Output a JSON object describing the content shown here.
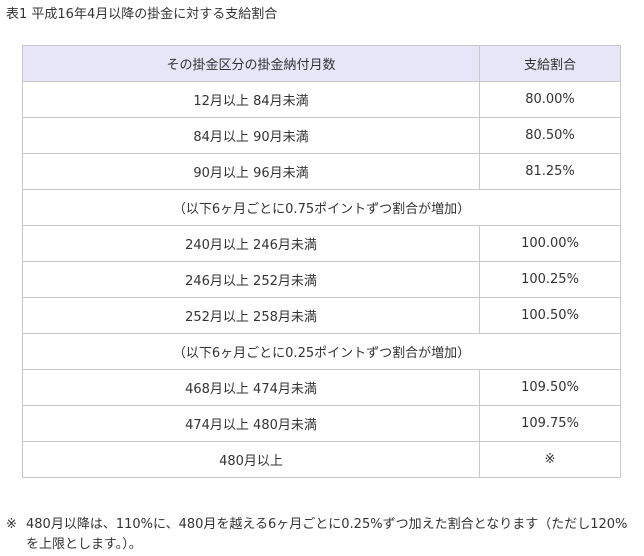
{
  "caption": "表1 平成16年4月以降の掛金に対する支給割合",
  "table": {
    "headers": [
      "その掛金区分の掛金納付月数",
      "支給割合"
    ],
    "rows": [
      {
        "type": "data",
        "range": "12月以上 84月未満",
        "rate": "80.00%"
      },
      {
        "type": "data",
        "range": "84月以上 90月未満",
        "rate": "80.50%"
      },
      {
        "type": "data",
        "range": "90月以上 96月未満",
        "rate": "81.25%"
      },
      {
        "type": "span",
        "text": "（以下6ヶ月ごとに0.75ポイントずつ割合が増加）"
      },
      {
        "type": "data",
        "range": "240月以上 246月未満",
        "rate": "100.00%"
      },
      {
        "type": "data",
        "range": "246月以上 252月未満",
        "rate": "100.25%"
      },
      {
        "type": "data",
        "range": "252月以上 258月未満",
        "rate": "100.50%"
      },
      {
        "type": "span",
        "text": "（以下6ヶ月ごとに0.25ポイントずつ割合が増加）"
      },
      {
        "type": "data",
        "range": "468月以上 474月未満",
        "rate": "109.50%"
      },
      {
        "type": "data",
        "range": "474月以上 480月未満",
        "rate": "109.75%"
      },
      {
        "type": "data",
        "range": "480月以上",
        "rate": "※"
      }
    ]
  },
  "note": {
    "mark": "※",
    "text": "480月以降は、110%に、480月を越える6ヶ月ごとに0.25%ずつ加えた割合となります（ただし120%を上限とします。）。"
  }
}
